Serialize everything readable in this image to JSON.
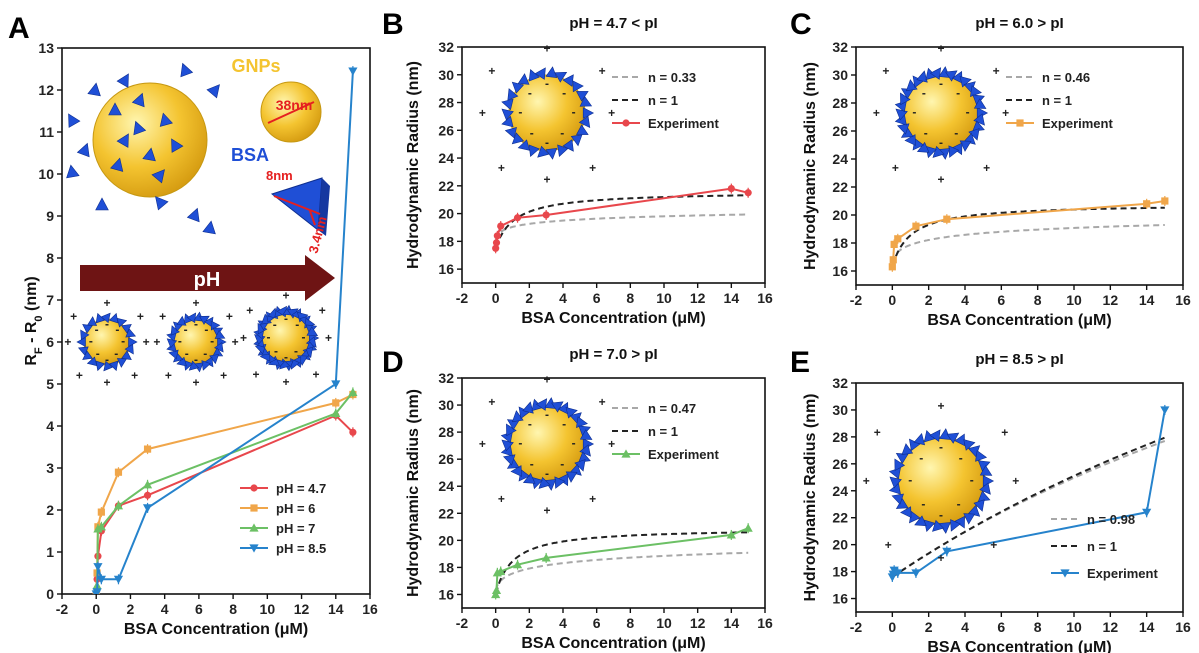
{
  "colors": {
    "ph47": "#e8474c",
    "ph6": "#f0a64a",
    "ph7": "#6cc065",
    "ph85": "#2683cc",
    "gold": "#f4c430",
    "bsa": "#1f4fd6",
    "arrow": "#6e1414"
  },
  "chart_data": [
    {
      "panel": "A",
      "type": "line",
      "title": "",
      "xlabel": "BSA Concentration (μM)",
      "ylabel_main": "R",
      "ylabel_sub_f": "F",
      "ylabel_mid": " - R",
      "ylabel_sub_0": "0",
      "ylabel_unit": " (nm)",
      "xlim": [
        -2,
        16
      ],
      "ylim": [
        0,
        13
      ],
      "xticks": [
        "-2",
        "0",
        "2",
        "4",
        "6",
        "8",
        "10",
        "12",
        "14",
        "16"
      ],
      "yticks": [
        "0",
        "1",
        "2",
        "3",
        "4",
        "5",
        "6",
        "7",
        "8",
        "9",
        "10",
        "11",
        "12",
        "13"
      ],
      "legend_position": "lower-right",
      "annotations": {
        "gnps": "GNPs",
        "gnp_size": "38nm",
        "bsa": "BSA",
        "bsa_len": "8nm",
        "bsa_w": "3.4nm",
        "arrow_label": "pH"
      },
      "series": [
        {
          "name": "pH = 4.7",
          "color": "#e8474c",
          "marker": "circle",
          "x": [
            0,
            0.05,
            0.1,
            0.3,
            1.3,
            3,
            14,
            15
          ],
          "y": [
            0,
            0.35,
            0.9,
            1.5,
            2.1,
            2.35,
            4.25,
            3.85
          ]
        },
        {
          "name": "pH = 6",
          "color": "#f0a64a",
          "marker": "square",
          "x": [
            0,
            0.05,
            0.1,
            0.3,
            1.3,
            3,
            14,
            15
          ],
          "y": [
            0,
            0.5,
            1.6,
            1.95,
            2.9,
            3.45,
            4.55,
            4.75
          ]
        },
        {
          "name": "pH = 7",
          "color": "#6cc065",
          "marker": "triangle",
          "x": [
            0,
            0.05,
            0.1,
            0.3,
            1.3,
            3,
            14,
            15
          ],
          "y": [
            0,
            0.2,
            1.55,
            1.6,
            2.1,
            2.6,
            4.3,
            4.8
          ]
        },
        {
          "name": "pH = 8.5",
          "color": "#2683cc",
          "marker": "triangle-down",
          "x": [
            0,
            0.05,
            0.1,
            0.3,
            1.3,
            3,
            14,
            15
          ],
          "y": [
            0,
            0.05,
            0.65,
            0.35,
            0.35,
            2.05,
            5.0,
            12.45
          ]
        }
      ]
    },
    {
      "panel": "B",
      "type": "line",
      "title": "pH = 4.7 < pI",
      "xlabel": "BSA Concentration (μM)",
      "ylabel": "Hydrodynamic Radius (nm)",
      "xlim": [
        -2,
        16
      ],
      "ylim": [
        15,
        32
      ],
      "xticks": [
        "-2",
        "0",
        "2",
        "4",
        "6",
        "8",
        "10",
        "12",
        "14",
        "16"
      ],
      "yticks": [
        "16",
        "18",
        "20",
        "22",
        "24",
        "26",
        "28",
        "30",
        "32"
      ],
      "legend_position": "top-right",
      "series": [
        {
          "name": "n = 0.33",
          "style": "dashed",
          "color": "#a8a8a8",
          "x": [],
          "y": [],
          "fit": {
            "r0": 17.5,
            "rmax": 21.6,
            "k": 0.6,
            "n": 0.33
          }
        },
        {
          "name": "n = 1",
          "style": "dashed",
          "color": "#222222",
          "x": [],
          "y": [],
          "fit": {
            "r0": 17.5,
            "rmax": 21.6,
            "k": 0.9,
            "n": 1
          }
        },
        {
          "name": "Experiment",
          "color": "#e8474c",
          "marker": "circle",
          "x": [
            0,
            0.05,
            0.1,
            0.3,
            1.3,
            3,
            14,
            15
          ],
          "y": [
            17.5,
            17.9,
            18.4,
            19.1,
            19.7,
            19.9,
            21.8,
            21.5
          ]
        }
      ]
    },
    {
      "panel": "C",
      "type": "line",
      "title": "pH = 6.0 > pI",
      "xlabel": "BSA Concentration (μM)",
      "ylabel": "Hydrodynamic Radius (nm)",
      "xlim": [
        -2,
        16
      ],
      "ylim": [
        15,
        32
      ],
      "xticks": [
        "-2",
        "0",
        "2",
        "4",
        "6",
        "8",
        "10",
        "12",
        "14",
        "16"
      ],
      "yticks": [
        "16",
        "18",
        "20",
        "22",
        "24",
        "26",
        "28",
        "30",
        "32"
      ],
      "legend_position": "top-right",
      "series": [
        {
          "name": "n = 0.46",
          "style": "dashed",
          "color": "#a8a8a8",
          "x": [],
          "y": [],
          "fit": {
            "r0": 16.3,
            "rmax": 21.0,
            "k": 0.5,
            "n": 0.46
          }
        },
        {
          "name": "n = 1",
          "style": "dashed",
          "color": "#222222",
          "x": [],
          "y": [],
          "fit": {
            "r0": 16.3,
            "rmax": 20.8,
            "k": 1.0,
            "n": 1
          }
        },
        {
          "name": "Experiment",
          "color": "#f0a64a",
          "marker": "square",
          "x": [
            0,
            0.05,
            0.1,
            0.3,
            1.3,
            3,
            14,
            15
          ],
          "y": [
            16.3,
            16.8,
            17.9,
            18.3,
            19.2,
            19.7,
            20.8,
            21.0
          ]
        }
      ]
    },
    {
      "panel": "D",
      "type": "line",
      "title": "pH = 7.0 > pI",
      "xlabel": "BSA Concentration (μM)",
      "ylabel": "Hydrodynamic Radius (nm)",
      "xlim": [
        -2,
        16
      ],
      "ylim": [
        15,
        32
      ],
      "xticks": [
        "-2",
        "0",
        "2",
        "4",
        "6",
        "8",
        "10",
        "12",
        "14",
        "16"
      ],
      "yticks": [
        "16",
        "18",
        "20",
        "22",
        "24",
        "26",
        "28",
        "30",
        "32"
      ],
      "legend_position": "top-right",
      "series": [
        {
          "name": "n = 0.47",
          "style": "dashed",
          "color": "#a8a8a8",
          "x": [],
          "y": [],
          "fit": {
            "r0": 16.0,
            "rmax": 21.0,
            "k": 0.45,
            "n": 0.47
          }
        },
        {
          "name": "n = 1",
          "style": "dashed",
          "color": "#222222",
          "x": [],
          "y": [],
          "fit": {
            "r0": 16.0,
            "rmax": 20.9,
            "k": 1.0,
            "n": 1
          }
        },
        {
          "name": "Experiment",
          "color": "#6cc065",
          "marker": "triangle",
          "x": [
            0,
            0.05,
            0.1,
            0.3,
            1.3,
            3,
            14,
            15
          ],
          "y": [
            16.0,
            16.3,
            17.6,
            17.7,
            18.2,
            18.7,
            20.4,
            20.9
          ]
        }
      ]
    },
    {
      "panel": "E",
      "type": "line",
      "title": "pH = 8.5 > pI",
      "xlabel": "BSA Concentration (μM)",
      "ylabel": "Hydrodynamic Radius (nm)",
      "xlim": [
        -2,
        16
      ],
      "ylim": [
        15,
        32
      ],
      "xticks": [
        "-2",
        "0",
        "2",
        "4",
        "6",
        "8",
        "10",
        "12",
        "14",
        "16"
      ],
      "yticks": [
        "16",
        "18",
        "20",
        "22",
        "24",
        "26",
        "28",
        "30",
        "32"
      ],
      "legend_position": "lower-right",
      "series": [
        {
          "name": "n = 0.98",
          "style": "dashed",
          "color": "#a8a8a8",
          "x": [],
          "y": [],
          "fit": {
            "r0": 17.6,
            "rmax": 60,
            "k": 0.022,
            "n": 0.98
          }
        },
        {
          "name": "n = 1",
          "style": "dashed",
          "color": "#222222",
          "x": [],
          "y": [],
          "fit": {
            "r0": 17.6,
            "rmax": 60,
            "k": 0.0215,
            "n": 1
          }
        },
        {
          "name": "Experiment",
          "color": "#2683cc",
          "marker": "triangle-down",
          "x": [
            0,
            0.05,
            0.1,
            0.3,
            1.3,
            3,
            14,
            15
          ],
          "y": [
            17.6,
            17.8,
            18.1,
            17.9,
            17.9,
            19.5,
            22.4,
            30.0
          ]
        }
      ]
    }
  ]
}
